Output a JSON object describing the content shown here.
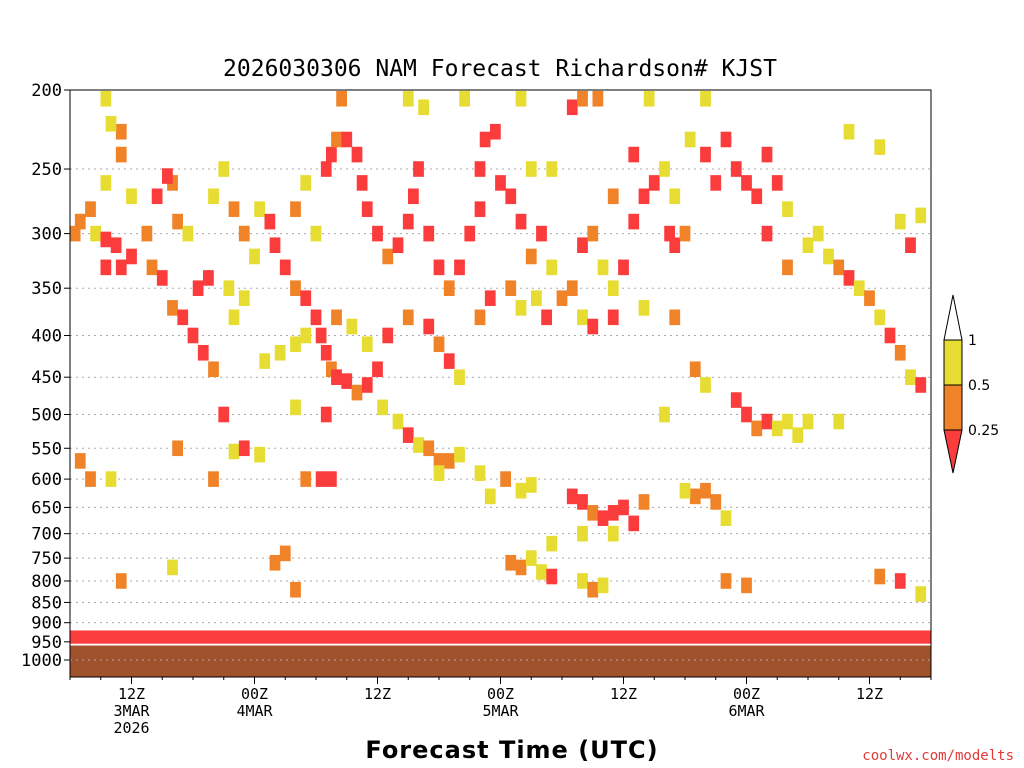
{
  "chart_data": {
    "type": "heatmap",
    "title": "2026030306 NAM Forecast Richardson# KJST",
    "xlabel": "Forecast Time (UTC)",
    "ylabel": "",
    "credit": "coolwx.com/modelts",
    "y_axis": {
      "scale": "pressure-log",
      "range_hpa": [
        1000,
        200
      ],
      "ticks": [
        "200",
        "250",
        "300",
        "350",
        "400",
        "450",
        "500",
        "550",
        "600",
        "650",
        "700",
        "750",
        "800",
        "850",
        "900",
        "950",
        "1000"
      ]
    },
    "x_axis": {
      "range_hours": [
        0,
        84
      ],
      "ticks": [
        {
          "hour": 6,
          "lines": [
            "12Z",
            "3MAR",
            "2026"
          ]
        },
        {
          "hour": 18,
          "lines": [
            "00Z",
            "4MAR"
          ]
        },
        {
          "hour": 30,
          "lines": [
            "12Z"
          ]
        },
        {
          "hour": 42,
          "lines": [
            "00Z",
            "5MAR"
          ]
        },
        {
          "hour": 54,
          "lines": [
            "12Z"
          ]
        },
        {
          "hour": 66,
          "lines": [
            "00Z",
            "6MAR"
          ]
        },
        {
          "hour": 78,
          "lines": [
            "12Z"
          ]
        }
      ]
    },
    "colorbar": {
      "labels": [
        "1",
        "0.5",
        "0.25"
      ],
      "bins": [
        {
          "range": "0.5-1",
          "color": "#e6dc32"
        },
        {
          "range": "0.25-0.5",
          "color": "#f08228"
        },
        {
          "range": "<0.25",
          "color": "#fa3c3c"
        }
      ]
    },
    "colors": {
      "yellow": "#e6dc32",
      "orange": "#f08228",
      "red": "#fa3c3c",
      "ground": "#a0522d",
      "grid": "#aaaaaa"
    },
    "series_description": "Richardson number classes (cells) sampled by forecast hour and pressure level",
    "cells": [
      {
        "h": 3.5,
        "p": 205,
        "c": "y"
      },
      {
        "h": 3.5,
        "p": 260,
        "c": "y"
      },
      {
        "h": 2,
        "p": 280,
        "c": "o"
      },
      {
        "h": 1,
        "p": 290,
        "c": "o"
      },
      {
        "h": 0.5,
        "p": 300,
        "c": "o"
      },
      {
        "h": 2.5,
        "p": 300,
        "c": "y"
      },
      {
        "h": 3.5,
        "p": 305,
        "c": "r"
      },
      {
        "h": 4.5,
        "p": 310,
        "c": "r"
      },
      {
        "h": 5,
        "p": 330,
        "c": "r"
      },
      {
        "h": 3.5,
        "p": 330,
        "c": "r"
      },
      {
        "h": 6,
        "p": 320,
        "c": "r"
      },
      {
        "h": 7.5,
        "p": 300,
        "c": "o"
      },
      {
        "h": 8,
        "p": 330,
        "c": "o"
      },
      {
        "h": 9,
        "p": 340,
        "c": "r"
      },
      {
        "h": 10,
        "p": 370,
        "c": "o"
      },
      {
        "h": 11,
        "p": 380,
        "c": "r"
      },
      {
        "h": 12,
        "p": 400,
        "c": "r"
      },
      {
        "h": 13,
        "p": 420,
        "c": "r"
      },
      {
        "h": 14,
        "p": 440,
        "c": "o"
      },
      {
        "h": 12.5,
        "p": 350,
        "c": "r"
      },
      {
        "h": 13.5,
        "p": 340,
        "c": "r"
      },
      {
        "h": 10,
        "p": 260,
        "c": "o"
      },
      {
        "h": 9.5,
        "p": 255,
        "c": "r"
      },
      {
        "h": 5,
        "p": 240,
        "c": "o"
      },
      {
        "h": 5,
        "p": 225,
        "c": "o"
      },
      {
        "h": 4,
        "p": 220,
        "c": "y"
      },
      {
        "h": 6,
        "p": 270,
        "c": "y"
      },
      {
        "h": 8.5,
        "p": 270,
        "c": "r"
      },
      {
        "h": 10.5,
        "p": 290,
        "c": "o"
      },
      {
        "h": 11.5,
        "p": 300,
        "c": "y"
      },
      {
        "h": 15.5,
        "p": 350,
        "c": "y"
      },
      {
        "h": 16,
        "p": 380,
        "c": "y"
      },
      {
        "h": 17,
        "p": 360,
        "c": "y"
      },
      {
        "h": 18.5,
        "p": 280,
        "c": "y"
      },
      {
        "h": 19.5,
        "p": 290,
        "c": "r"
      },
      {
        "h": 20,
        "p": 310,
        "c": "r"
      },
      {
        "h": 21,
        "p": 330,
        "c": "r"
      },
      {
        "h": 22,
        "p": 350,
        "c": "o"
      },
      {
        "h": 23,
        "p": 360,
        "c": "r"
      },
      {
        "h": 24,
        "p": 380,
        "c": "r"
      },
      {
        "h": 24.5,
        "p": 400,
        "c": "r"
      },
      {
        "h": 25,
        "p": 420,
        "c": "r"
      },
      {
        "h": 25.5,
        "p": 440,
        "c": "o"
      },
      {
        "h": 26,
        "p": 450,
        "c": "r"
      },
      {
        "h": 27,
        "p": 455,
        "c": "r"
      },
      {
        "h": 28,
        "p": 470,
        "c": "o"
      },
      {
        "h": 29,
        "p": 460,
        "c": "r"
      },
      {
        "h": 30,
        "p": 440,
        "c": "r"
      },
      {
        "h": 25,
        "p": 250,
        "c": "r"
      },
      {
        "h": 25.5,
        "p": 240,
        "c": "r"
      },
      {
        "h": 26,
        "p": 230,
        "c": "o"
      },
      {
        "h": 27,
        "p": 230,
        "c": "r"
      },
      {
        "h": 28,
        "p": 240,
        "c": "r"
      },
      {
        "h": 28.5,
        "p": 260,
        "c": "r"
      },
      {
        "h": 29,
        "p": 280,
        "c": "r"
      },
      {
        "h": 30,
        "p": 300,
        "c": "r"
      },
      {
        "h": 31,
        "p": 320,
        "c": "o"
      },
      {
        "h": 32,
        "p": 310,
        "c": "r"
      },
      {
        "h": 33,
        "p": 290,
        "c": "r"
      },
      {
        "h": 33.5,
        "p": 270,
        "c": "r"
      },
      {
        "h": 34,
        "p": 250,
        "c": "r"
      },
      {
        "h": 35,
        "p": 300,
        "c": "r"
      },
      {
        "h": 36,
        "p": 330,
        "c": "r"
      },
      {
        "h": 37,
        "p": 350,
        "c": "o"
      },
      {
        "h": 38,
        "p": 330,
        "c": "r"
      },
      {
        "h": 39,
        "p": 300,
        "c": "r"
      },
      {
        "h": 40,
        "p": 280,
        "c": "r"
      },
      {
        "h": 40,
        "p": 250,
        "c": "r"
      },
      {
        "h": 40.5,
        "p": 230,
        "c": "r"
      },
      {
        "h": 41.5,
        "p": 225,
        "c": "r"
      },
      {
        "h": 42,
        "p": 260,
        "c": "r"
      },
      {
        "h": 43,
        "p": 270,
        "c": "r"
      },
      {
        "h": 44,
        "p": 290,
        "c": "r"
      },
      {
        "h": 45,
        "p": 320,
        "c": "o"
      },
      {
        "h": 46,
        "p": 300,
        "c": "r"
      },
      {
        "h": 47,
        "p": 330,
        "c": "y"
      },
      {
        "h": 48,
        "p": 360,
        "c": "o"
      },
      {
        "h": 49,
        "p": 350,
        "c": "o"
      },
      {
        "h": 50,
        "p": 380,
        "c": "y"
      },
      {
        "h": 51,
        "p": 390,
        "c": "r"
      },
      {
        "h": 50,
        "p": 310,
        "c": "r"
      },
      {
        "h": 51,
        "p": 300,
        "c": "o"
      },
      {
        "h": 52,
        "p": 330,
        "c": "y"
      },
      {
        "h": 53,
        "p": 350,
        "c": "y"
      },
      {
        "h": 54,
        "p": 330,
        "c": "r"
      },
      {
        "h": 55,
        "p": 290,
        "c": "r"
      },
      {
        "h": 56,
        "p": 270,
        "c": "r"
      },
      {
        "h": 57,
        "p": 260,
        "c": "r"
      },
      {
        "h": 58,
        "p": 250,
        "c": "y"
      },
      {
        "h": 58.5,
        "p": 300,
        "c": "r"
      },
      {
        "h": 59,
        "p": 310,
        "c": "r"
      },
      {
        "h": 60,
        "p": 300,
        "c": "o"
      },
      {
        "h": 49,
        "p": 210,
        "c": "r"
      },
      {
        "h": 50,
        "p": 205,
        "c": "o"
      },
      {
        "h": 51.5,
        "p": 205,
        "c": "o"
      },
      {
        "h": 53,
        "p": 270,
        "c": "o"
      },
      {
        "h": 55,
        "p": 240,
        "c": "r"
      },
      {
        "h": 56.5,
        "p": 205,
        "c": "y"
      },
      {
        "h": 62,
        "p": 240,
        "c": "r"
      },
      {
        "h": 63,
        "p": 260,
        "c": "r"
      },
      {
        "h": 64,
        "p": 230,
        "c": "r"
      },
      {
        "h": 65,
        "p": 250,
        "c": "r"
      },
      {
        "h": 66,
        "p": 260,
        "c": "r"
      },
      {
        "h": 67,
        "p": 270,
        "c": "r"
      },
      {
        "h": 68,
        "p": 240,
        "c": "r"
      },
      {
        "h": 69,
        "p": 260,
        "c": "r"
      },
      {
        "h": 70,
        "p": 280,
        "c": "y"
      },
      {
        "h": 68,
        "p": 300,
        "c": "r"
      },
      {
        "h": 70,
        "p": 330,
        "c": "o"
      },
      {
        "h": 72,
        "p": 310,
        "c": "y"
      },
      {
        "h": 73,
        "p": 300,
        "c": "y"
      },
      {
        "h": 74,
        "p": 320,
        "c": "y"
      },
      {
        "h": 75,
        "p": 330,
        "c": "o"
      },
      {
        "h": 76,
        "p": 340,
        "c": "r"
      },
      {
        "h": 77,
        "p": 350,
        "c": "y"
      },
      {
        "h": 78,
        "p": 360,
        "c": "o"
      },
      {
        "h": 79,
        "p": 380,
        "c": "y"
      },
      {
        "h": 80,
        "p": 400,
        "c": "r"
      },
      {
        "h": 81,
        "p": 420,
        "c": "o"
      },
      {
        "h": 82,
        "p": 450,
        "c": "y"
      },
      {
        "h": 83,
        "p": 460,
        "c": "r"
      },
      {
        "h": 81,
        "p": 290,
        "c": "y"
      },
      {
        "h": 82,
        "p": 310,
        "c": "r"
      },
      {
        "h": 83,
        "p": 285,
        "c": "y"
      },
      {
        "h": 79,
        "p": 235,
        "c": "y"
      },
      {
        "h": 76,
        "p": 225,
        "c": "y"
      },
      {
        "h": 62,
        "p": 205,
        "c": "y"
      },
      {
        "h": 60.5,
        "p": 230,
        "c": "y"
      },
      {
        "h": 15,
        "p": 500,
        "c": "r"
      },
      {
        "h": 22,
        "p": 490,
        "c": "y"
      },
      {
        "h": 25,
        "p": 500,
        "c": "r"
      },
      {
        "h": 30.5,
        "p": 490,
        "c": "y"
      },
      {
        "h": 32,
        "p": 510,
        "c": "y"
      },
      {
        "h": 33,
        "p": 530,
        "c": "r"
      },
      {
        "h": 34,
        "p": 545,
        "c": "y"
      },
      {
        "h": 35,
        "p": 550,
        "c": "o"
      },
      {
        "h": 36,
        "p": 570,
        "c": "o"
      },
      {
        "h": 37,
        "p": 570,
        "c": "o"
      },
      {
        "h": 38,
        "p": 560,
        "c": "y"
      },
      {
        "h": 10.5,
        "p": 550,
        "c": "o"
      },
      {
        "h": 16,
        "p": 555,
        "c": "y"
      },
      {
        "h": 17,
        "p": 550,
        "c": "r"
      },
      {
        "h": 18.5,
        "p": 560,
        "c": "y"
      },
      {
        "h": 1,
        "p": 570,
        "c": "o"
      },
      {
        "h": 2,
        "p": 600,
        "c": "o"
      },
      {
        "h": 4,
        "p": 600,
        "c": "y"
      },
      {
        "h": 14,
        "p": 600,
        "c": "o"
      },
      {
        "h": 23,
        "p": 600,
        "c": "o"
      },
      {
        "h": 24.5,
        "p": 600,
        "c": "r"
      },
      {
        "h": 25.5,
        "p": 600,
        "c": "r"
      },
      {
        "h": 41,
        "p": 630,
        "c": "y"
      },
      {
        "h": 44,
        "p": 620,
        "c": "y"
      },
      {
        "h": 49,
        "p": 630,
        "c": "r"
      },
      {
        "h": 50,
        "p": 640,
        "c": "r"
      },
      {
        "h": 51,
        "p": 660,
        "c": "o"
      },
      {
        "h": 52,
        "p": 670,
        "c": "r"
      },
      {
        "h": 53,
        "p": 660,
        "c": "r"
      },
      {
        "h": 54,
        "p": 650,
        "c": "r"
      },
      {
        "h": 55,
        "p": 680,
        "c": "r"
      },
      {
        "h": 56,
        "p": 640,
        "c": "o"
      },
      {
        "h": 50,
        "p": 700,
        "c": "y"
      },
      {
        "h": 53,
        "p": 700,
        "c": "y"
      },
      {
        "h": 61,
        "p": 630,
        "c": "o"
      },
      {
        "h": 62,
        "p": 620,
        "c": "o"
      },
      {
        "h": 63,
        "p": 640,
        "c": "o"
      },
      {
        "h": 64,
        "p": 670,
        "c": "y"
      },
      {
        "h": 60,
        "p": 620,
        "c": "y"
      },
      {
        "h": 65,
        "p": 480,
        "c": "r"
      },
      {
        "h": 66,
        "p": 500,
        "c": "r"
      },
      {
        "h": 67,
        "p": 520,
        "c": "o"
      },
      {
        "h": 68,
        "p": 510,
        "c": "r"
      },
      {
        "h": 69,
        "p": 520,
        "c": "y"
      },
      {
        "h": 70,
        "p": 510,
        "c": "y"
      },
      {
        "h": 71,
        "p": 530,
        "c": "y"
      },
      {
        "h": 72,
        "p": 510,
        "c": "y"
      },
      {
        "h": 75,
        "p": 510,
        "c": "y"
      },
      {
        "h": 58,
        "p": 500,
        "c": "y"
      },
      {
        "h": 43,
        "p": 760,
        "c": "o"
      },
      {
        "h": 44,
        "p": 770,
        "c": "o"
      },
      {
        "h": 45,
        "p": 750,
        "c": "y"
      },
      {
        "h": 46,
        "p": 780,
        "c": "y"
      },
      {
        "h": 47,
        "p": 790,
        "c": "r"
      },
      {
        "h": 20,
        "p": 760,
        "c": "o"
      },
      {
        "h": 21,
        "p": 740,
        "c": "o"
      },
      {
        "h": 10,
        "p": 770,
        "c": "y"
      },
      {
        "h": 5,
        "p": 800,
        "c": "o"
      },
      {
        "h": 22,
        "p": 820,
        "c": "o"
      },
      {
        "h": 47,
        "p": 720,
        "c": "y"
      },
      {
        "h": 50,
        "p": 800,
        "c": "y"
      },
      {
        "h": 51,
        "p": 820,
        "c": "o"
      },
      {
        "h": 52,
        "p": 810,
        "c": "y"
      },
      {
        "h": 64,
        "p": 800,
        "c": "o"
      },
      {
        "h": 66,
        "p": 810,
        "c": "o"
      },
      {
        "h": 79,
        "p": 790,
        "c": "o"
      },
      {
        "h": 81,
        "p": 800,
        "c": "r"
      },
      {
        "h": 83,
        "p": 830,
        "c": "y"
      },
      {
        "h": 36,
        "p": 590,
        "c": "y"
      },
      {
        "h": 40,
        "p": 590,
        "c": "y"
      },
      {
        "h": 42.5,
        "p": 600,
        "c": "o"
      },
      {
        "h": 45,
        "p": 610,
        "c": "y"
      },
      {
        "h": 19,
        "p": 430,
        "c": "y"
      },
      {
        "h": 20.5,
        "p": 420,
        "c": "y"
      },
      {
        "h": 22,
        "p": 410,
        "c": "y"
      },
      {
        "h": 23,
        "p": 400,
        "c": "y"
      },
      {
        "h": 26,
        "p": 380,
        "c": "o"
      },
      {
        "h": 27.5,
        "p": 390,
        "c": "y"
      },
      {
        "h": 29,
        "p": 410,
        "c": "y"
      },
      {
        "h": 31,
        "p": 400,
        "c": "r"
      },
      {
        "h": 33,
        "p": 380,
        "c": "o"
      },
      {
        "h": 35,
        "p": 390,
        "c": "r"
      },
      {
        "h": 36,
        "p": 410,
        "c": "o"
      },
      {
        "h": 37,
        "p": 430,
        "c": "r"
      },
      {
        "h": 38,
        "p": 450,
        "c": "y"
      },
      {
        "h": 40,
        "p": 380,
        "c": "o"
      },
      {
        "h": 41,
        "p": 360,
        "c": "r"
      },
      {
        "h": 43,
        "p": 350,
        "c": "o"
      },
      {
        "h": 44,
        "p": 370,
        "c": "y"
      },
      {
        "h": 45.5,
        "p": 360,
        "c": "y"
      },
      {
        "h": 46.5,
        "p": 380,
        "c": "r"
      },
      {
        "h": 53,
        "p": 380,
        "c": "r"
      },
      {
        "h": 56,
        "p": 370,
        "c": "y"
      },
      {
        "h": 59,
        "p": 380,
        "c": "o"
      },
      {
        "h": 61,
        "p": 440,
        "c": "o"
      },
      {
        "h": 62,
        "p": 460,
        "c": "y"
      },
      {
        "h": 14,
        "p": 270,
        "c": "y"
      },
      {
        "h": 15,
        "p": 250,
        "c": "y"
      },
      {
        "h": 16,
        "p": 280,
        "c": "o"
      },
      {
        "h": 17,
        "p": 300,
        "c": "o"
      },
      {
        "h": 18,
        "p": 320,
        "c": "y"
      },
      {
        "h": 22,
        "p": 280,
        "c": "o"
      },
      {
        "h": 23,
        "p": 260,
        "c": "y"
      },
      {
        "h": 24,
        "p": 300,
        "c": "y"
      },
      {
        "h": 26.5,
        "p": 205,
        "c": "o"
      },
      {
        "h": 33,
        "p": 205,
        "c": "y"
      },
      {
        "h": 34.5,
        "p": 210,
        "c": "y"
      },
      {
        "h": 38.5,
        "p": 205,
        "c": "y"
      },
      {
        "h": 44,
        "p": 205,
        "c": "y"
      },
      {
        "h": 45,
        "p": 250,
        "c": "y"
      },
      {
        "h": 47,
        "p": 250,
        "c": "y"
      },
      {
        "h": 59,
        "p": 270,
        "c": "y"
      }
    ]
  }
}
